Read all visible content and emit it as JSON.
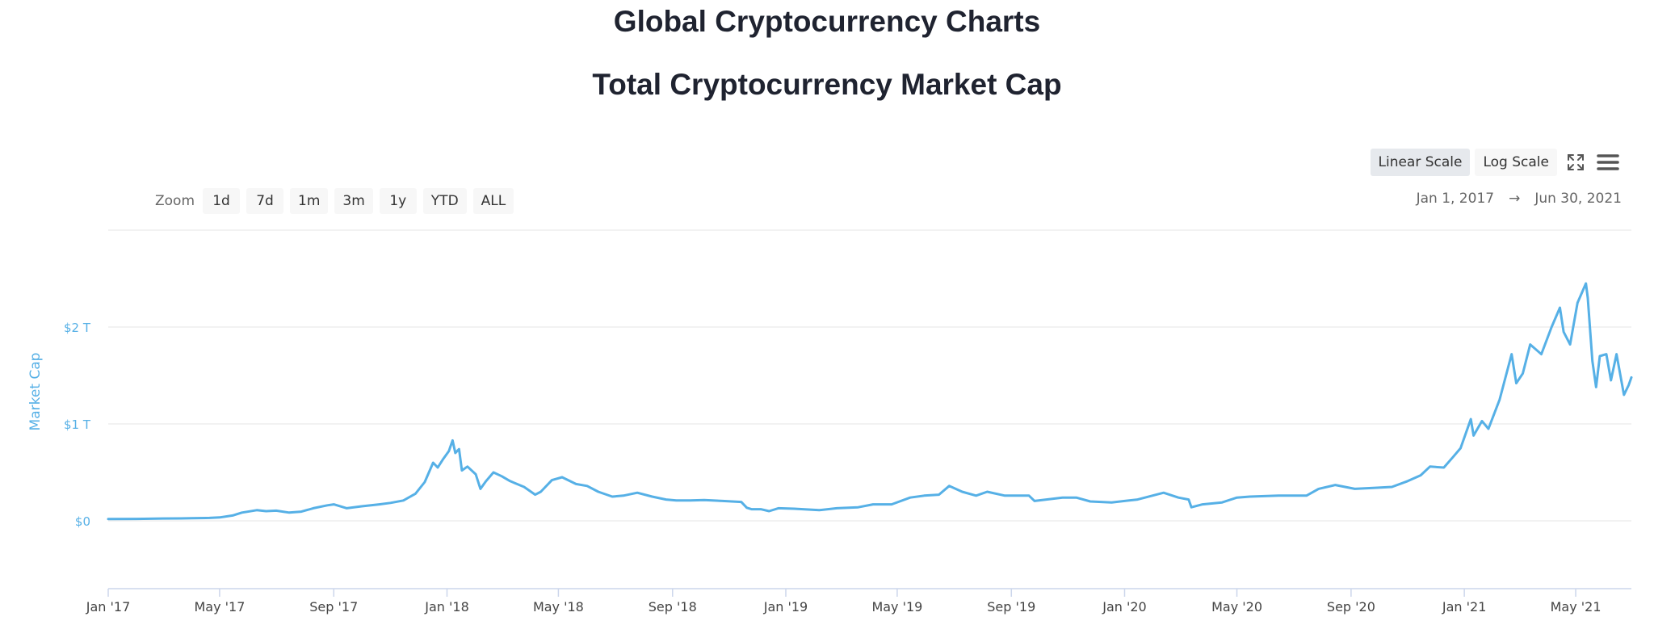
{
  "page": {
    "heading": "Global Cryptocurrency Charts"
  },
  "toolbar": {
    "scale_buttons": [
      {
        "label": "Linear Scale",
        "active": true
      },
      {
        "label": "Log Scale",
        "active": false
      }
    ],
    "icons": [
      "fullscreen-icon",
      "menu-icon"
    ]
  },
  "zoom": {
    "label": "Zoom",
    "buttons": [
      "1d",
      "7d",
      "1m",
      "3m",
      "1y",
      "YTD",
      "ALL"
    ]
  },
  "range": {
    "from": "Jan 1, 2017",
    "arrow": "→",
    "to": "Jun 30, 2021"
  },
  "colors": {
    "line": "#56b0e6",
    "grid": "#e6e6e6",
    "axis": "#ccd6eb",
    "text_dark": "#1f2330",
    "text_muted": "#666666"
  },
  "chart_data": {
    "type": "line",
    "title": "Total Cryptocurrency Market Cap",
    "xlabel": "",
    "ylabel": "Market Cap",
    "x_range": [
      "2017-01-01",
      "2021-06-30"
    ],
    "ylim": [
      -0.7,
      3.0
    ],
    "y_unit": "trillion USD",
    "y_ticks": [
      {
        "value": 0,
        "label": "$0"
      },
      {
        "value": 1,
        "label": "$1 T"
      },
      {
        "value": 2,
        "label": "$2 T"
      }
    ],
    "x_ticks": [
      {
        "date": "2017-01-01",
        "label": "Jan '17"
      },
      {
        "date": "2017-05-01",
        "label": "May '17"
      },
      {
        "date": "2017-09-01",
        "label": "Sep '17"
      },
      {
        "date": "2018-01-01",
        "label": "Jan '18"
      },
      {
        "date": "2018-05-01",
        "label": "May '18"
      },
      {
        "date": "2018-09-01",
        "label": "Sep '18"
      },
      {
        "date": "2019-01-01",
        "label": "Jan '19"
      },
      {
        "date": "2019-05-01",
        "label": "May '19"
      },
      {
        "date": "2019-09-01",
        "label": "Sep '19"
      },
      {
        "date": "2020-01-01",
        "label": "Jan '20"
      },
      {
        "date": "2020-05-01",
        "label": "May '20"
      },
      {
        "date": "2020-09-01",
        "label": "Sep '20"
      },
      {
        "date": "2021-01-01",
        "label": "Jan '21"
      },
      {
        "date": "2021-05-01",
        "label": "May '21"
      }
    ],
    "grid": true,
    "legend": "none",
    "series": [
      {
        "points": [
          [
            "2017-01-01",
            0.018
          ],
          [
            "2017-02-01",
            0.02
          ],
          [
            "2017-03-01",
            0.024
          ],
          [
            "2017-03-20",
            0.025
          ],
          [
            "2017-04-01",
            0.027
          ],
          [
            "2017-04-20",
            0.03
          ],
          [
            "2017-05-01",
            0.035
          ],
          [
            "2017-05-15",
            0.055
          ],
          [
            "2017-05-25",
            0.085
          ],
          [
            "2017-06-10",
            0.11
          ],
          [
            "2017-06-20",
            0.1
          ],
          [
            "2017-07-01",
            0.105
          ],
          [
            "2017-07-15",
            0.085
          ],
          [
            "2017-07-28",
            0.095
          ],
          [
            "2017-08-10",
            0.13
          ],
          [
            "2017-08-25",
            0.16
          ],
          [
            "2017-09-01",
            0.17
          ],
          [
            "2017-09-15",
            0.13
          ],
          [
            "2017-10-01",
            0.15
          ],
          [
            "2017-10-20",
            0.17
          ],
          [
            "2017-11-01",
            0.185
          ],
          [
            "2017-11-15",
            0.21
          ],
          [
            "2017-11-28",
            0.28
          ],
          [
            "2017-12-08",
            0.4
          ],
          [
            "2017-12-17",
            0.6
          ],
          [
            "2017-12-22",
            0.55
          ],
          [
            "2017-12-28",
            0.64
          ],
          [
            "2018-01-03",
            0.72
          ],
          [
            "2018-01-07",
            0.83
          ],
          [
            "2018-01-10",
            0.7
          ],
          [
            "2018-01-14",
            0.74
          ],
          [
            "2018-01-17",
            0.52
          ],
          [
            "2018-01-23",
            0.56
          ],
          [
            "2018-02-01",
            0.48
          ],
          [
            "2018-02-06",
            0.33
          ],
          [
            "2018-02-12",
            0.41
          ],
          [
            "2018-02-20",
            0.5
          ],
          [
            "2018-03-01",
            0.46
          ],
          [
            "2018-03-10",
            0.41
          ],
          [
            "2018-03-25",
            0.35
          ],
          [
            "2018-04-06",
            0.27
          ],
          [
            "2018-04-12",
            0.3
          ],
          [
            "2018-04-24",
            0.42
          ],
          [
            "2018-05-05",
            0.45
          ],
          [
            "2018-05-20",
            0.38
          ],
          [
            "2018-06-01",
            0.36
          ],
          [
            "2018-06-13",
            0.3
          ],
          [
            "2018-06-28",
            0.25
          ],
          [
            "2018-07-10",
            0.26
          ],
          [
            "2018-07-25",
            0.29
          ],
          [
            "2018-08-10",
            0.25
          ],
          [
            "2018-08-25",
            0.22
          ],
          [
            "2018-09-05",
            0.21
          ],
          [
            "2018-09-20",
            0.21
          ],
          [
            "2018-10-05",
            0.215
          ],
          [
            "2018-10-25",
            0.205
          ],
          [
            "2018-11-14",
            0.195
          ],
          [
            "2018-11-20",
            0.135
          ],
          [
            "2018-11-25",
            0.12
          ],
          [
            "2018-12-05",
            0.12
          ],
          [
            "2018-12-14",
            0.1
          ],
          [
            "2018-12-24",
            0.13
          ],
          [
            "2019-01-10",
            0.125
          ],
          [
            "2019-02-06",
            0.11
          ],
          [
            "2019-02-25",
            0.13
          ],
          [
            "2019-03-20",
            0.14
          ],
          [
            "2019-04-05",
            0.17
          ],
          [
            "2019-04-25",
            0.17
          ],
          [
            "2019-05-15",
            0.24
          ],
          [
            "2019-05-30",
            0.26
          ],
          [
            "2019-06-15",
            0.27
          ],
          [
            "2019-06-26",
            0.36
          ],
          [
            "2019-07-10",
            0.3
          ],
          [
            "2019-07-25",
            0.26
          ],
          [
            "2019-08-06",
            0.3
          ],
          [
            "2019-08-25",
            0.26
          ],
          [
            "2019-09-20",
            0.26
          ],
          [
            "2019-09-26",
            0.205
          ],
          [
            "2019-10-26",
            0.24
          ],
          [
            "2019-11-10",
            0.24
          ],
          [
            "2019-11-25",
            0.2
          ],
          [
            "2019-12-18",
            0.19
          ],
          [
            "2020-01-15",
            0.22
          ],
          [
            "2020-02-12",
            0.29
          ],
          [
            "2020-02-28",
            0.24
          ],
          [
            "2020-03-10",
            0.22
          ],
          [
            "2020-03-13",
            0.14
          ],
          [
            "2020-03-25",
            0.17
          ],
          [
            "2020-04-15",
            0.19
          ],
          [
            "2020-05-01",
            0.24
          ],
          [
            "2020-05-15",
            0.25
          ],
          [
            "2020-06-15",
            0.26
          ],
          [
            "2020-07-15",
            0.26
          ],
          [
            "2020-07-28",
            0.33
          ],
          [
            "2020-08-15",
            0.37
          ],
          [
            "2020-09-05",
            0.33
          ],
          [
            "2020-09-25",
            0.34
          ],
          [
            "2020-10-15",
            0.35
          ],
          [
            "2020-11-01",
            0.41
          ],
          [
            "2020-11-15",
            0.47
          ],
          [
            "2020-11-25",
            0.56
          ],
          [
            "2020-12-10",
            0.55
          ],
          [
            "2020-12-20",
            0.66
          ],
          [
            "2020-12-28",
            0.75
          ],
          [
            "2021-01-08",
            1.05
          ],
          [
            "2021-01-11",
            0.88
          ],
          [
            "2021-01-20",
            1.03
          ],
          [
            "2021-01-27",
            0.95
          ],
          [
            "2021-02-08",
            1.25
          ],
          [
            "2021-02-21",
            1.72
          ],
          [
            "2021-02-26",
            1.42
          ],
          [
            "2021-03-05",
            1.52
          ],
          [
            "2021-03-13",
            1.82
          ],
          [
            "2021-03-25",
            1.72
          ],
          [
            "2021-04-05",
            2.0
          ],
          [
            "2021-04-14",
            2.2
          ],
          [
            "2021-04-18",
            1.95
          ],
          [
            "2021-04-25",
            1.82
          ],
          [
            "2021-05-03",
            2.25
          ],
          [
            "2021-05-12",
            2.45
          ],
          [
            "2021-05-14",
            2.3
          ],
          [
            "2021-05-19",
            1.65
          ],
          [
            "2021-05-23",
            1.38
          ],
          [
            "2021-05-27",
            1.7
          ],
          [
            "2021-06-03",
            1.72
          ],
          [
            "2021-06-08",
            1.45
          ],
          [
            "2021-06-14",
            1.72
          ],
          [
            "2021-06-22",
            1.3
          ],
          [
            "2021-06-27",
            1.4
          ],
          [
            "2021-06-30",
            1.48
          ]
        ]
      }
    ]
  }
}
